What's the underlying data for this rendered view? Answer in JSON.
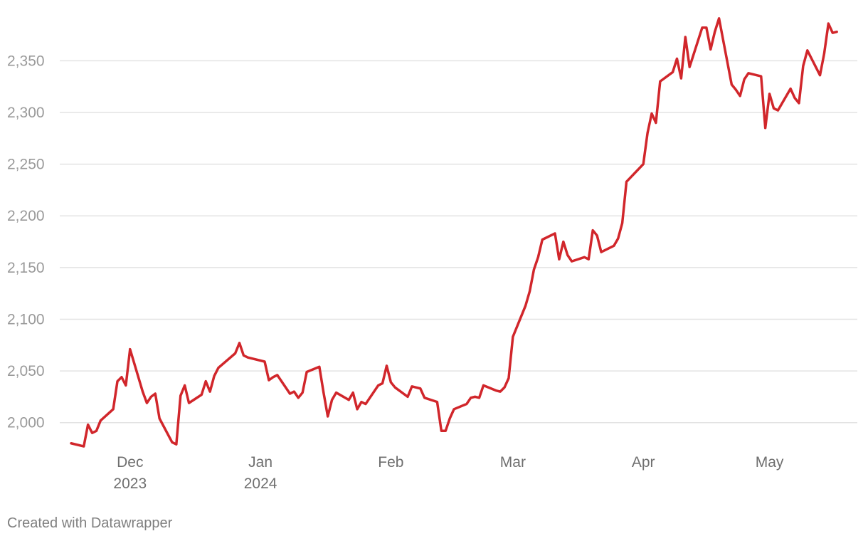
{
  "chart_data": {
    "type": "line",
    "title": "",
    "xlabel": "",
    "ylabel": "",
    "ylim": [
      1975,
      2395
    ],
    "xlim": [
      "2023-11-17",
      "2024-05-19"
    ],
    "grid": "horizontal",
    "y_ticks": [
      {
        "value": 2000,
        "label": "2,000"
      },
      {
        "value": 2050,
        "label": "2,050"
      },
      {
        "value": 2100,
        "label": "2,100"
      },
      {
        "value": 2150,
        "label": "2,150"
      },
      {
        "value": 2200,
        "label": "2,200"
      },
      {
        "value": 2250,
        "label": "2,250"
      },
      {
        "value": 2300,
        "label": "2,300"
      },
      {
        "value": 2350,
        "label": "2,350"
      }
    ],
    "x_ticks": [
      {
        "date": "2023-12-01",
        "label": "Dec",
        "sublabel": "2023"
      },
      {
        "date": "2024-01-01",
        "label": "Jan",
        "sublabel": "2024"
      },
      {
        "date": "2024-02-01",
        "label": "Feb",
        "sublabel": ""
      },
      {
        "date": "2024-03-01",
        "label": "Mar",
        "sublabel": ""
      },
      {
        "date": "2024-04-01",
        "label": "Apr",
        "sublabel": ""
      },
      {
        "date": "2024-05-01",
        "label": "May",
        "sublabel": ""
      }
    ],
    "series": [
      {
        "color": "#d1262b",
        "points": [
          [
            "2023-11-17",
            1980
          ],
          [
            "2023-11-20",
            1977
          ],
          [
            "2023-11-21",
            1998
          ],
          [
            "2023-11-22",
            1990
          ],
          [
            "2023-11-23",
            1992
          ],
          [
            "2023-11-24",
            2002
          ],
          [
            "2023-11-27",
            2013
          ],
          [
            "2023-11-28",
            2040
          ],
          [
            "2023-11-29",
            2044
          ],
          [
            "2023-11-30",
            2036
          ],
          [
            "2023-12-01",
            2071
          ],
          [
            "2023-12-04",
            2030
          ],
          [
            "2023-12-05",
            2019
          ],
          [
            "2023-12-06",
            2025
          ],
          [
            "2023-12-07",
            2028
          ],
          [
            "2023-12-08",
            2004
          ],
          [
            "2023-12-11",
            1981
          ],
          [
            "2023-12-12",
            1979
          ],
          [
            "2023-12-13",
            2026
          ],
          [
            "2023-12-14",
            2036
          ],
          [
            "2023-12-15",
            2019
          ],
          [
            "2023-12-18",
            2027
          ],
          [
            "2023-12-19",
            2040
          ],
          [
            "2023-12-20",
            2030
          ],
          [
            "2023-12-21",
            2045
          ],
          [
            "2023-12-22",
            2053
          ],
          [
            "2023-12-26",
            2067
          ],
          [
            "2023-12-27",
            2077
          ],
          [
            "2023-12-28",
            2065
          ],
          [
            "2023-12-29",
            2063
          ],
          [
            "2024-01-02",
            2059
          ],
          [
            "2024-01-03",
            2041
          ],
          [
            "2024-01-04",
            2044
          ],
          [
            "2024-01-05",
            2046
          ],
          [
            "2024-01-08",
            2028
          ],
          [
            "2024-01-09",
            2030
          ],
          [
            "2024-01-10",
            2024
          ],
          [
            "2024-01-11",
            2029
          ],
          [
            "2024-01-12",
            2049
          ],
          [
            "2024-01-15",
            2054
          ],
          [
            "2024-01-16",
            2029
          ],
          [
            "2024-01-17",
            2006
          ],
          [
            "2024-01-18",
            2022
          ],
          [
            "2024-01-19",
            2029
          ],
          [
            "2024-01-22",
            2022
          ],
          [
            "2024-01-23",
            2029
          ],
          [
            "2024-01-24",
            2013
          ],
          [
            "2024-01-25",
            2020
          ],
          [
            "2024-01-26",
            2018
          ],
          [
            "2024-01-29",
            2036
          ],
          [
            "2024-01-30",
            2038
          ],
          [
            "2024-01-31",
            2055
          ],
          [
            "2024-02-01",
            2039
          ],
          [
            "2024-02-02",
            2034
          ],
          [
            "2024-02-05",
            2025
          ],
          [
            "2024-02-06",
            2035
          ],
          [
            "2024-02-07",
            2034
          ],
          [
            "2024-02-08",
            2033
          ],
          [
            "2024-02-09",
            2024
          ],
          [
            "2024-02-12",
            2020
          ],
          [
            "2024-02-13",
            1992
          ],
          [
            "2024-02-14",
            1992
          ],
          [
            "2024-02-15",
            2004
          ],
          [
            "2024-02-16",
            2013
          ],
          [
            "2024-02-19",
            2018
          ],
          [
            "2024-02-20",
            2024
          ],
          [
            "2024-02-21",
            2025
          ],
          [
            "2024-02-22",
            2024
          ],
          [
            "2024-02-23",
            2036
          ],
          [
            "2024-02-26",
            2031
          ],
          [
            "2024-02-27",
            2030
          ],
          [
            "2024-02-28",
            2034
          ],
          [
            "2024-02-29",
            2043
          ],
          [
            "2024-03-01",
            2083
          ],
          [
            "2024-03-04",
            2113
          ],
          [
            "2024-03-05",
            2127
          ],
          [
            "2024-03-06",
            2148
          ],
          [
            "2024-03-07",
            2160
          ],
          [
            "2024-03-08",
            2177
          ],
          [
            "2024-03-11",
            2183
          ],
          [
            "2024-03-12",
            2158
          ],
          [
            "2024-03-13",
            2175
          ],
          [
            "2024-03-14",
            2162
          ],
          [
            "2024-03-15",
            2156
          ],
          [
            "2024-03-18",
            2160
          ],
          [
            "2024-03-19",
            2158
          ],
          [
            "2024-03-20",
            2186
          ],
          [
            "2024-03-21",
            2181
          ],
          [
            "2024-03-22",
            2165
          ],
          [
            "2024-03-25",
            2171
          ],
          [
            "2024-03-26",
            2178
          ],
          [
            "2024-03-27",
            2193
          ],
          [
            "2024-03-28",
            2233
          ],
          [
            "2024-04-01",
            2250
          ],
          [
            "2024-04-02",
            2280
          ],
          [
            "2024-04-03",
            2299
          ],
          [
            "2024-04-04",
            2290
          ],
          [
            "2024-04-05",
            2330
          ],
          [
            "2024-04-08",
            2339
          ],
          [
            "2024-04-09",
            2352
          ],
          [
            "2024-04-10",
            2333
          ],
          [
            "2024-04-11",
            2373
          ],
          [
            "2024-04-12",
            2344
          ],
          [
            "2024-04-15",
            2382
          ],
          [
            "2024-04-16",
            2382
          ],
          [
            "2024-04-17",
            2361
          ],
          [
            "2024-04-18",
            2378
          ],
          [
            "2024-04-19",
            2391
          ],
          [
            "2024-04-22",
            2327
          ],
          [
            "2024-04-23",
            2322
          ],
          [
            "2024-04-24",
            2316
          ],
          [
            "2024-04-25",
            2332
          ],
          [
            "2024-04-26",
            2338
          ],
          [
            "2024-04-29",
            2335
          ],
          [
            "2024-04-30",
            2285
          ],
          [
            "2024-05-01",
            2318
          ],
          [
            "2024-05-02",
            2304
          ],
          [
            "2024-05-03",
            2302
          ],
          [
            "2024-05-06",
            2323
          ],
          [
            "2024-05-07",
            2314
          ],
          [
            "2024-05-08",
            2309
          ],
          [
            "2024-05-09",
            2345
          ],
          [
            "2024-05-10",
            2360
          ],
          [
            "2024-05-13",
            2336
          ],
          [
            "2024-05-14",
            2357
          ],
          [
            "2024-05-15",
            2386
          ],
          [
            "2024-05-16",
            2377
          ],
          [
            "2024-05-17",
            2378
          ]
        ]
      }
    ]
  },
  "footer": {
    "credit": "Created with Datawrapper"
  }
}
